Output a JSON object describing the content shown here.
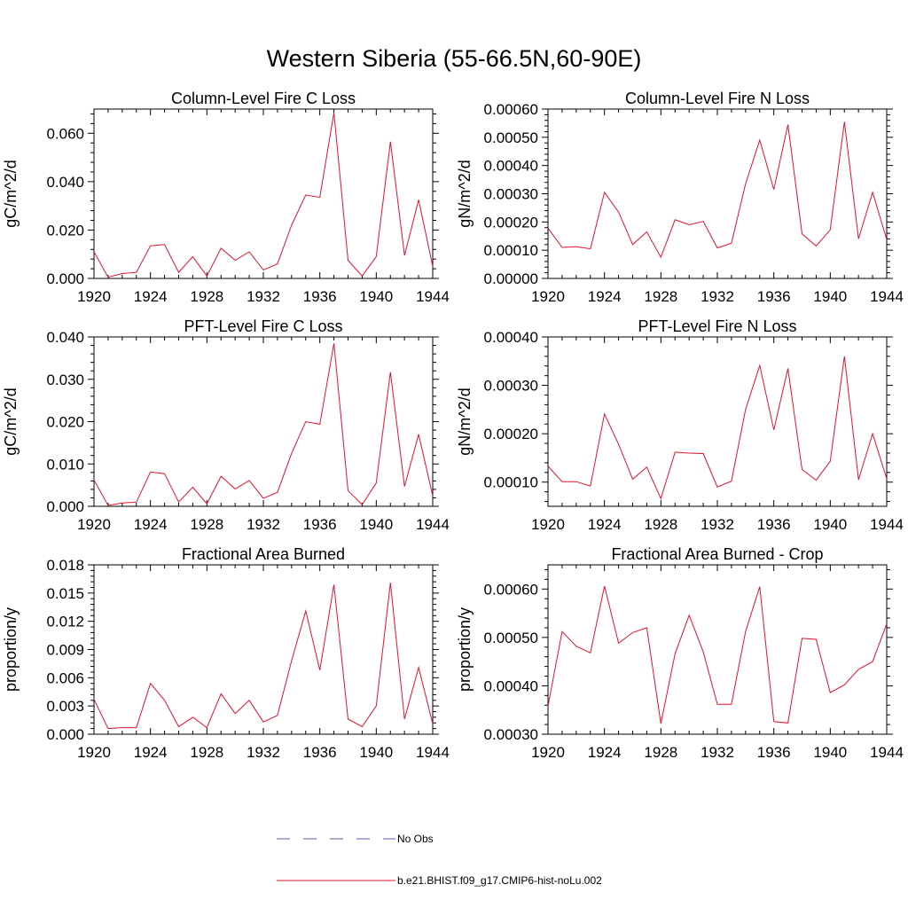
{
  "figure": {
    "title": "Western Siberia (55-66.5N,60-90E)"
  },
  "legend": {
    "items": [
      {
        "label": "No Obs",
        "color": "#5a5aa8",
        "dash": true
      },
      {
        "label": "b.e21.BHIST.f09_g17.CMIP6-hist-noLu.002",
        "color": "#e8102a",
        "dash": false
      }
    ]
  },
  "chart_data": [
    {
      "type": "line",
      "title": "Column-Level Fire C Loss",
      "ylabel": "gC/m^2/d",
      "xlim": [
        1920,
        1944
      ],
      "ylim": [
        0,
        0.07
      ],
      "xticks": [
        "1920",
        "1924",
        "1928",
        "1932",
        "1936",
        "1940",
        "1944"
      ],
      "yticks": [
        "0.000",
        "0.020",
        "0.040",
        "0.060"
      ],
      "ytick_values": [
        0,
        0.02,
        0.04,
        0.06
      ],
      "x": [
        1920,
        1921,
        1922,
        1923,
        1924,
        1925,
        1926,
        1927,
        1928,
        1929,
        1930,
        1931,
        1932,
        1933,
        1934,
        1935,
        1936,
        1937,
        1938,
        1939,
        1940,
        1941,
        1942,
        1943,
        1944
      ],
      "series": [
        {
          "name": "b.e21.BHIST.f09_g17.CMIP6-hist-noLu.002",
          "values": [
            0.011,
            0.0005,
            0.002,
            0.0025,
            0.0135,
            0.014,
            0.0025,
            0.009,
            0.001,
            0.0125,
            0.0075,
            0.011,
            0.0035,
            0.006,
            0.022,
            0.0345,
            0.0335,
            0.0685,
            0.0075,
            0.001,
            0.009,
            0.0565,
            0.0095,
            0.0325,
            0.005
          ]
        }
      ]
    },
    {
      "type": "line",
      "title": "Column-Level Fire N Loss",
      "ylabel": "gN/m^2/d",
      "xlim": [
        1920,
        1944
      ],
      "ylim": [
        0,
        0.0006
      ],
      "xticks": [
        "1920",
        "1924",
        "1928",
        "1932",
        "1936",
        "1940",
        "1944"
      ],
      "yticks": [
        "0.00000",
        "0.00010",
        "0.00020",
        "0.00030",
        "0.00040",
        "0.00050",
        "0.00060"
      ],
      "ytick_values": [
        0,
        0.0001,
        0.0002,
        0.0003,
        0.0004,
        0.0005,
        0.0006
      ],
      "x": [
        1920,
        1921,
        1922,
        1923,
        1924,
        1925,
        1926,
        1927,
        1928,
        1929,
        1930,
        1931,
        1932,
        1933,
        1934,
        1935,
        1936,
        1937,
        1938,
        1939,
        1940,
        1941,
        1942,
        1943,
        1944
      ],
      "series": [
        {
          "name": "b.e21.BHIST.f09_g17.CMIP6-hist-noLu.002",
          "values": [
            0.000178,
            0.00011,
            0.000112,
            0.000105,
            0.000305,
            0.000235,
            0.00012,
            0.000165,
            7.5e-05,
            0.000208,
            0.00019,
            0.000202,
            0.000108,
            0.000125,
            0.000335,
            0.00049,
            0.000315,
            0.000545,
            0.000158,
            0.000115,
            0.000172,
            0.000555,
            0.00014,
            0.000305,
            0.000138
          ]
        }
      ]
    },
    {
      "type": "line",
      "title": "PFT-Level Fire C Loss",
      "ylabel": "gC/m^2/d",
      "xlim": [
        1920,
        1944
      ],
      "ylim": [
        0,
        0.04
      ],
      "xticks": [
        "1920",
        "1924",
        "1928",
        "1932",
        "1936",
        "1940",
        "1944"
      ],
      "yticks": [
        "0.000",
        "0.010",
        "0.020",
        "0.030",
        "0.040"
      ],
      "ytick_values": [
        0,
        0.01,
        0.02,
        0.03,
        0.04
      ],
      "x": [
        1920,
        1921,
        1922,
        1923,
        1924,
        1925,
        1926,
        1927,
        1928,
        1929,
        1930,
        1931,
        1932,
        1933,
        1934,
        1935,
        1936,
        1937,
        1938,
        1939,
        1940,
        1941,
        1942,
        1943,
        1944
      ],
      "series": [
        {
          "name": "b.e21.BHIST.f09_g17.CMIP6-hist-noLu.002",
          "values": [
            0.0062,
            0.0002,
            0.0008,
            0.001,
            0.0081,
            0.0077,
            0.001,
            0.0045,
            0.0006,
            0.0071,
            0.0041,
            0.0061,
            0.0019,
            0.0033,
            0.0125,
            0.02,
            0.0194,
            0.0385,
            0.0037,
            0.0004,
            0.0055,
            0.0317,
            0.0047,
            0.017,
            0.0025
          ]
        }
      ]
    },
    {
      "type": "line",
      "title": "PFT-Level Fire N Loss",
      "ylabel": "gN/m^2/d",
      "xlim": [
        1920,
        1944
      ],
      "ylim": [
        5e-05,
        0.0004
      ],
      "xticks": [
        "1920",
        "1924",
        "1928",
        "1932",
        "1936",
        "1940",
        "1944"
      ],
      "yticks": [
        "0.00010",
        "0.00020",
        "0.00030",
        "0.00040"
      ],
      "ytick_values": [
        0.0001,
        0.0002,
        0.0003,
        0.0004
      ],
      "x": [
        1920,
        1921,
        1922,
        1923,
        1924,
        1925,
        1926,
        1927,
        1928,
        1929,
        1930,
        1931,
        1932,
        1933,
        1934,
        1935,
        1936,
        1937,
        1938,
        1939,
        1940,
        1941,
        1942,
        1943,
        1944
      ],
      "series": [
        {
          "name": "b.e21.BHIST.f09_g17.CMIP6-hist-noLu.002",
          "values": [
            0.000133,
            0.000101,
            0.000101,
            9.2e-05,
            0.000241,
            0.000178,
            0.000106,
            0.000131,
            6.6e-05,
            0.000162,
            0.00016,
            0.000159,
            9e-05,
            0.000102,
            0.00025,
            0.000341,
            0.000208,
            0.000335,
            0.000126,
            0.000104,
            0.000143,
            0.00036,
            0.000105,
            0.0002,
            0.000107
          ]
        }
      ]
    },
    {
      "type": "line",
      "title": "Fractional Area Burned",
      "ylabel": "proportion/y",
      "xlim": [
        1920,
        1944
      ],
      "ylim": [
        0,
        0.018
      ],
      "xticks": [
        "1920",
        "1924",
        "1928",
        "1932",
        "1936",
        "1940",
        "1944"
      ],
      "yticks": [
        "0.000",
        "0.003",
        "0.006",
        "0.009",
        "0.012",
        "0.015",
        "0.018"
      ],
      "ytick_values": [
        0,
        0.003,
        0.006,
        0.009,
        0.012,
        0.015,
        0.018
      ],
      "x": [
        1920,
        1921,
        1922,
        1923,
        1924,
        1925,
        1926,
        1927,
        1928,
        1929,
        1930,
        1931,
        1932,
        1933,
        1934,
        1935,
        1936,
        1937,
        1938,
        1939,
        1940,
        1941,
        1942,
        1943,
        1944
      ],
      "series": [
        {
          "name": "b.e21.BHIST.f09_g17.CMIP6-hist-noLu.002",
          "values": [
            0.0037,
            0.0006,
            0.0007,
            0.0007,
            0.0054,
            0.0036,
            0.0008,
            0.0018,
            0.0007,
            0.0043,
            0.0022,
            0.0036,
            0.0013,
            0.002,
            0.0078,
            0.0131,
            0.0068,
            0.0159,
            0.0016,
            0.0008,
            0.003,
            0.0161,
            0.0016,
            0.0071,
            0.0011
          ]
        }
      ]
    },
    {
      "type": "line",
      "title": "Fractional Area Burned - Crop",
      "ylabel": "proportion/y",
      "xlim": [
        1920,
        1944
      ],
      "ylim": [
        0.0003,
        0.00065
      ],
      "xticks": [
        "1920",
        "1924",
        "1928",
        "1932",
        "1936",
        "1940",
        "1944"
      ],
      "yticks": [
        "0.00030",
        "0.00040",
        "0.00050",
        "0.00060"
      ],
      "ytick_values": [
        0.0003,
        0.0004,
        0.0005,
        0.0006
      ],
      "x": [
        1920,
        1921,
        1922,
        1923,
        1924,
        1925,
        1926,
        1927,
        1928,
        1929,
        1930,
        1931,
        1932,
        1933,
        1934,
        1935,
        1936,
        1937,
        1938,
        1939,
        1940,
        1941,
        1942,
        1943,
        1944
      ],
      "series": [
        {
          "name": "b.e21.BHIST.f09_g17.CMIP6-hist-noLu.002",
          "values": [
            0.000358,
            0.000512,
            0.000482,
            0.000468,
            0.000606,
            0.000488,
            0.00051,
            0.00052,
            0.000322,
            0.000466,
            0.000546,
            0.00047,
            0.000362,
            0.000362,
            0.000512,
            0.000605,
            0.000326,
            0.000323,
            0.000498,
            0.000496,
            0.000386,
            0.000402,
            0.000434,
            0.00045,
            0.000528
          ]
        }
      ]
    }
  ]
}
